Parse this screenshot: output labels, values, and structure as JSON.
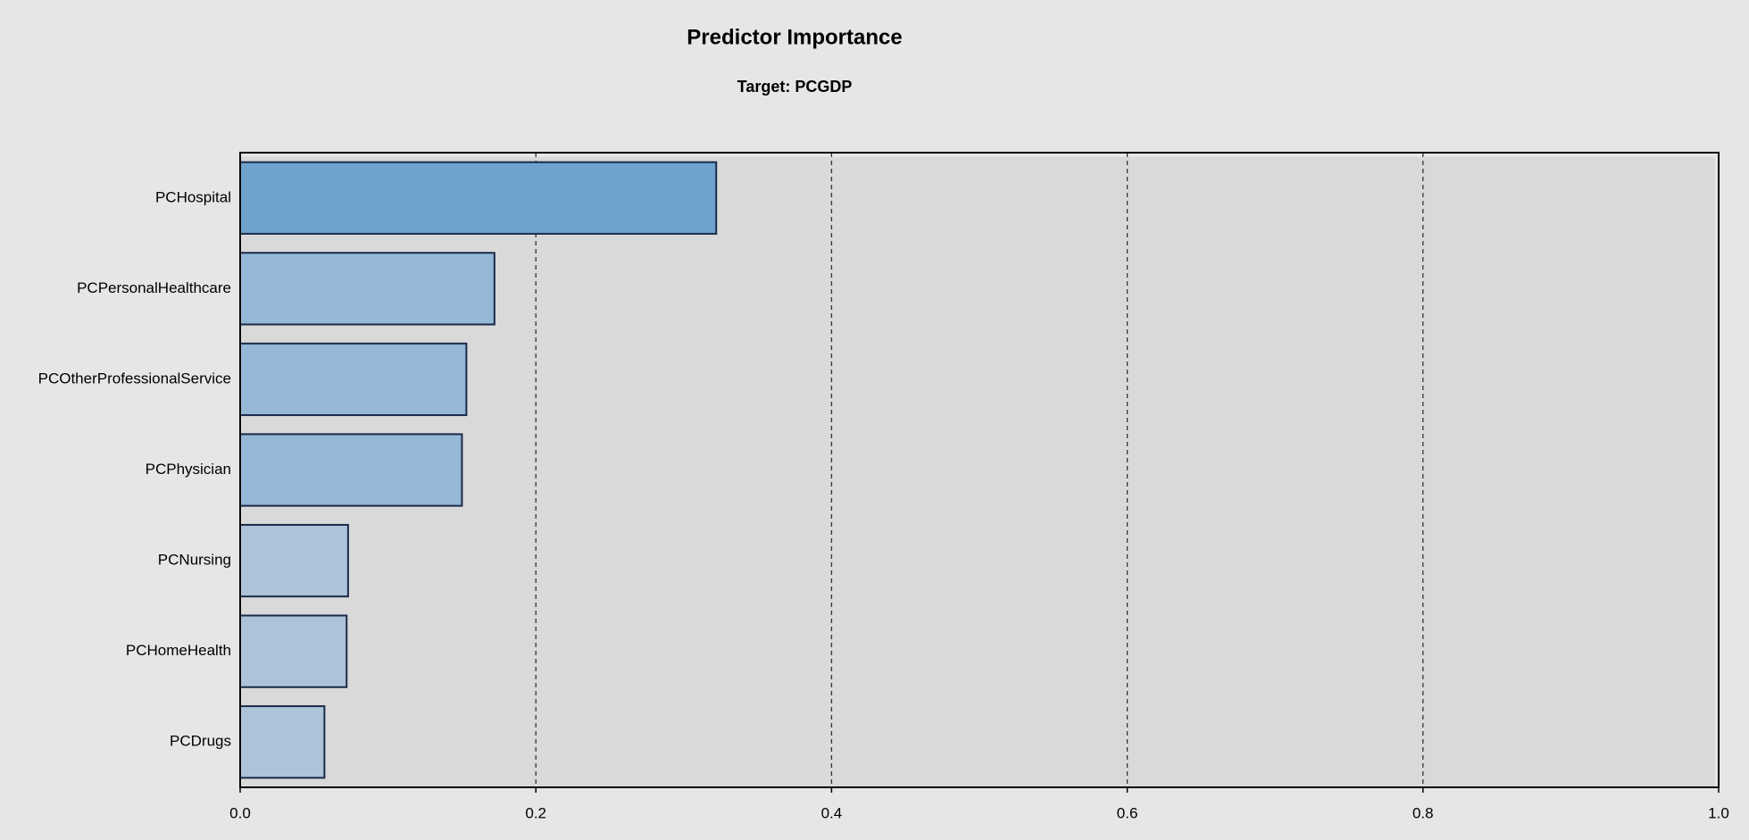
{
  "chart_data": {
    "type": "bar",
    "orientation": "horizontal",
    "title": "Predictor Importance",
    "subtitle": "Target: PCGDP",
    "categories": [
      "PCHospital",
      "PCPersonalHealthcare",
      "PCOtherProfessionalService",
      "PCPhysician",
      "PCNursing",
      "PCHomeHealth",
      "PCDrugs"
    ],
    "values": [
      0.322,
      0.172,
      0.153,
      0.15,
      0.073,
      0.072,
      0.057
    ],
    "colors": [
      "#6fa3cd",
      "#94b8d5",
      "#94b8d5",
      "#94b8d5",
      "#adc3d7",
      "#adc3d7",
      "#adc3d7"
    ],
    "xlim": [
      0,
      1
    ],
    "xticks": [
      {
        "value": 0,
        "label": "0.0"
      },
      0.2,
      0.4,
      0.6,
      0.8,
      {
        "value": 1,
        "label": "1.0"
      }
    ],
    "grid": true
  }
}
